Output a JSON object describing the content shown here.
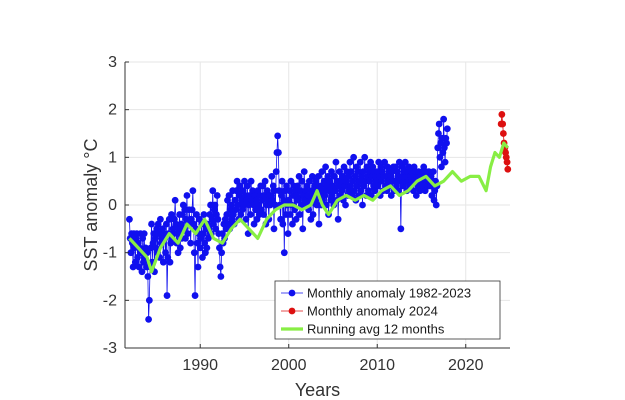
{
  "chart_data": {
    "type": "line",
    "title": "",
    "xlabel": "Years",
    "ylabel": "SST anomaly °C",
    "xlim": [
      1981.5,
      2025.0
    ],
    "ylim": [
      -3,
      3
    ],
    "xticks": [
      1990,
      2000,
      2010,
      2020
    ],
    "yticks": [
      -3,
      -2,
      -1,
      0,
      1,
      2,
      3
    ],
    "grid": true,
    "legend_position": "bottom-right",
    "colors": {
      "monthly_1982_2023": "#1010ee",
      "monthly_2024": "#dd1010",
      "running_avg": "#88ee44",
      "axis": "#333333",
      "grid": "#e6e6e6"
    },
    "series": [
      {
        "name": "Monthly anomaly 1982-2023",
        "style": "line-markers",
        "note": "values approximate; monthly points read from the figure",
        "x_start": 1982.0,
        "x_step": 0.0833333,
        "values": [
          -0.3,
          -0.7,
          -1.0,
          -0.6,
          -0.8,
          -1.3,
          -0.6,
          -0.9,
          -1.2,
          -0.7,
          -0.6,
          -1.1,
          -0.8,
          -1.3,
          -0.9,
          -0.6,
          -1.0,
          -1.4,
          -0.7,
          -1.2,
          -0.6,
          -1.1,
          -0.9,
          -1.3,
          -1.0,
          -1.5,
          -2.4,
          -2.0,
          -1.3,
          -0.9,
          -0.4,
          -1.2,
          -0.8,
          -0.6,
          -1.4,
          -0.7,
          -0.9,
          -0.5,
          -1.0,
          -0.4,
          -0.6,
          -1.1,
          -0.3,
          -0.8,
          -0.7,
          -0.5,
          -1.2,
          -0.6,
          -0.7,
          -1.0,
          -0.4,
          -1.9,
          -1.1,
          -0.6,
          -0.3,
          -1.2,
          -0.8,
          -0.2,
          -0.7,
          -0.5,
          -0.6,
          -0.3,
          0.1,
          -0.4,
          -0.8,
          -0.6,
          -1.0,
          -0.5,
          -0.2,
          -0.9,
          -0.4,
          -0.7,
          -0.2,
          0.0,
          -0.5,
          -0.1,
          -0.7,
          -0.3,
          0.2,
          -0.6,
          -0.4,
          -0.1,
          -0.3,
          -0.8,
          -0.3,
          -0.1,
          0.3,
          -0.4,
          -1.0,
          -1.9,
          -0.5,
          -0.2,
          -0.8,
          -1.3,
          -0.6,
          -0.3,
          -0.9,
          -0.7,
          -0.4,
          -1.1,
          -0.6,
          -0.2,
          -0.8,
          -1.0,
          -0.5,
          -0.9,
          -0.4,
          -0.7,
          -0.5,
          -0.2,
          0.0,
          -0.6,
          -0.3,
          0.3,
          -0.4,
          -0.1,
          0.0,
          -0.5,
          -0.2,
          0.2,
          -0.3,
          -0.6,
          -0.9,
          -1.3,
          -1.5,
          -1.0,
          -0.6,
          -0.8,
          -0.4,
          -0.7,
          -0.3,
          -0.5,
          -0.2,
          0.1,
          -0.4,
          0.2,
          -0.5,
          -0.1,
          0.0,
          -0.3,
          0.3,
          -0.2,
          -0.4,
          0.1,
          -0.1,
          0.3,
          0.5,
          0.0,
          -0.3,
          0.2,
          0.4,
          -0.2,
          0.1,
          -0.1,
          0.3,
          0.0,
          0.5,
          0.2,
          -0.3,
          0.1,
          0.4,
          -0.6,
          0.0,
          0.2,
          -0.2,
          0.5,
          0.1,
          0.3,
          0.0,
          -0.4,
          0.2,
          -0.1,
          0.1,
          -0.3,
          0.3,
          0.0,
          -0.2,
          0.2,
          0.4,
          -0.1,
          0.1,
          0.4,
          -0.2,
          0.2,
          0.5,
          -0.4,
          0.0,
          0.3,
          0.1,
          -0.3,
          0.2,
          0.0,
          0.2,
          0.6,
          0.1,
          0.4,
          -0.5,
          0.3,
          0.0,
          0.7,
          1.1,
          1.45,
          1.1,
          0.3,
          0.0,
          -0.3,
          0.2,
          0.5,
          -0.4,
          0.1,
          -1.0,
          0.3,
          -0.2,
          0.4,
          0.0,
          -0.6,
          0.1,
          0.3,
          -0.2,
          0.5,
          0.0,
          -0.4,
          0.2,
          0.4,
          -0.1,
          0.3,
          -0.3,
          0.2,
          0.4,
          0.1,
          0.6,
          -0.2,
          0.3,
          0.0,
          0.5,
          -0.5,
          0.2,
          0.7,
          0.1,
          0.3,
          0.0,
          0.4,
          0.2,
          -0.1,
          0.5,
          0.1,
          -0.3,
          0.3,
          0.6,
          -0.2,
          0.2,
          0.4,
          0.1,
          0.5,
          0.0,
          0.3,
          0.6,
          -0.4,
          0.2,
          0.4,
          0.0,
          0.7,
          0.1,
          0.3,
          0.5,
          0.2,
          0.8,
          0.0,
          0.4,
          0.6,
          -0.2,
          0.3,
          0.5,
          0.1,
          0.7,
          0.2,
          0.4,
          0.0,
          0.6,
          0.3,
          0.9,
          0.1,
          0.5,
          -0.3,
          0.4,
          0.7,
          0.2,
          0.5,
          0.3,
          0.6,
          0.1,
          0.8,
          0.4,
          0.0,
          0.5,
          0.7,
          0.2,
          0.6,
          0.3,
          0.9,
          0.4,
          0.7,
          0.2,
          0.5,
          1.0,
          0.3,
          0.6,
          0.1,
          0.8,
          0.4,
          0.7,
          0.2,
          0.5,
          0.9,
          0.3,
          0.6,
          0.0,
          0.7,
          0.4,
          1.0,
          0.5,
          0.2,
          0.8,
          0.6,
          0.3,
          0.7,
          0.5,
          0.9,
          0.2,
          0.6,
          0.8,
          0.4,
          0.7,
          0.3,
          0.6,
          0.5,
          0.7,
          0.4,
          0.9,
          0.6,
          0.2,
          0.8,
          0.5,
          0.7,
          0.3,
          0.6,
          0.9,
          0.4,
          0.6,
          0.3,
          0.8,
          0.5,
          0.7,
          0.4,
          0.6,
          0.2,
          0.7,
          0.5,
          0.8,
          0.3,
          0.5,
          0.8,
          0.4,
          0.7,
          0.6,
          0.3,
          0.9,
          0.5,
          -0.5,
          0.6,
          0.8,
          0.4,
          0.7,
          0.5,
          0.9,
          0.6,
          0.3,
          0.7,
          0.5,
          0.8,
          0.4,
          0.6,
          0.7,
          0.5,
          0.6,
          0.3,
          0.8,
          0.5,
          0.7,
          0.2,
          0.6,
          0.4,
          0.7,
          0.5,
          0.3,
          0.6,
          0.5,
          0.7,
          0.4,
          0.8,
          0.6,
          0.3,
          0.7,
          0.5,
          0.6,
          0.4,
          0.7,
          0.5,
          0.4,
          0.6,
          0.2,
          0.5,
          0.7,
          0.1,
          0.3,
          0.5,
          0.0,
          0.4,
          1.2,
          1.5,
          1.7,
          1.0,
          1.3,
          0.8,
          1.4,
          1.1,
          1.8,
          1.2,
          0.9,
          1.4,
          1.3,
          1.6
        ]
      },
      {
        "name": "Monthly anomaly 2024",
        "style": "line-markers",
        "x": [
          2024.0,
          2024.08,
          2024.17,
          2024.25,
          2024.33,
          2024.42,
          2024.5,
          2024.58,
          2024.67,
          2024.75
        ],
        "values": [
          1.7,
          1.9,
          1.7,
          1.5,
          1.3,
          1.2,
          1.1,
          1.0,
          0.9,
          0.75
        ]
      },
      {
        "name": "Running avg 12 months",
        "style": "thick-line",
        "x": [
          1982.0,
          1983.0,
          1984.0,
          1984.5,
          1985.5,
          1986.5,
          1987.5,
          1988.5,
          1989.5,
          1990.5,
          1991.5,
          1992.5,
          1993.5,
          1994.5,
          1995.5,
          1996.5,
          1997.5,
          1998.5,
          1999.5,
          2000.5,
          2001.5,
          2002.5,
          2003.2,
          2003.8,
          2004.5,
          2005.5,
          2006.5,
          2007.5,
          2008.5,
          2009.5,
          2010.5,
          2011.5,
          2012.5,
          2013.5,
          2014.5,
          2015.5,
          2016.5,
          2017.5,
          2018.5,
          2019.5,
          2020.5,
          2021.5,
          2022.3,
          2022.8,
          2023.3,
          2023.8,
          2024.3,
          2024.75
        ],
        "values": [
          -0.7,
          -0.9,
          -1.1,
          -1.4,
          -0.9,
          -0.6,
          -0.8,
          -0.4,
          -0.6,
          -0.3,
          -0.7,
          -0.8,
          -0.5,
          -0.3,
          -0.5,
          -0.7,
          -0.3,
          -0.1,
          0.0,
          0.0,
          -0.1,
          0.0,
          0.3,
          0.0,
          -0.2,
          0.1,
          0.2,
          0.1,
          0.2,
          0.1,
          0.3,
          0.4,
          0.2,
          0.3,
          0.5,
          0.6,
          0.4,
          0.5,
          0.7,
          0.5,
          0.6,
          0.6,
          0.3,
          0.8,
          1.1,
          1.0,
          1.3,
          1.2
        ]
      }
    ]
  }
}
